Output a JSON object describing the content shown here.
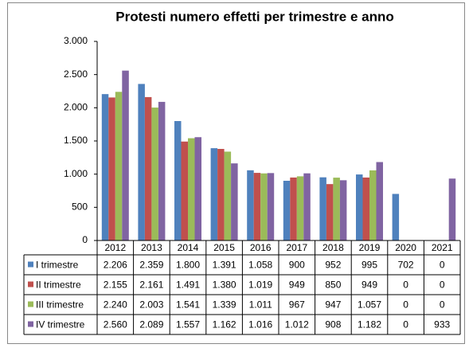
{
  "chart_data": {
    "type": "bar",
    "title": "Protesti numero effetti per trimestre e anno",
    "categories": [
      "2012",
      "2013",
      "2014",
      "2015",
      "2016",
      "2017",
      "2018",
      "2019",
      "2020",
      "2021"
    ],
    "series": [
      {
        "name": "I trimestre",
        "color": "#4f81bd",
        "values": [
          2206,
          2359,
          1800,
          1391,
          1058,
          900,
          952,
          995,
          702,
          0
        ],
        "value_labels": [
          "2.206",
          "2.359",
          "1.800",
          "1.391",
          "1.058",
          "900",
          "952",
          "995",
          "702",
          "0"
        ]
      },
      {
        "name": "II trimestre",
        "color": "#c0504d",
        "values": [
          2155,
          2161,
          1491,
          1380,
          1019,
          949,
          850,
          949,
          0,
          0
        ],
        "value_labels": [
          "2.155",
          "2.161",
          "1.491",
          "1.380",
          "1.019",
          "949",
          "850",
          "949",
          "0",
          "0"
        ]
      },
      {
        "name": "III trimestre",
        "color": "#9bbb59",
        "values": [
          2240,
          2003,
          1541,
          1339,
          1011,
          967,
          947,
          1057,
          0,
          0
        ],
        "value_labels": [
          "2.240",
          "2.003",
          "1.541",
          "1.339",
          "1.011",
          "967",
          "947",
          "1.057",
          "0",
          "0"
        ]
      },
      {
        "name": "IV trimestre",
        "color": "#8064a2",
        "values": [
          2560,
          2089,
          1557,
          1162,
          1016,
          1012,
          908,
          1182,
          0,
          933
        ],
        "value_labels": [
          "2.560",
          "2.089",
          "1.557",
          "1.162",
          "1.016",
          "1.012",
          "908",
          "1.182",
          "0",
          "933"
        ]
      }
    ],
    "ylim": [
      0,
      3000
    ],
    "yticks": [
      0,
      500,
      {
        "value": 1000,
        "label": "1.000"
      },
      {
        "value": 1500,
        "label": "1.500"
      },
      {
        "value": 2000,
        "label": "2.000"
      },
      {
        "value": 2500,
        "label": "2.500"
      },
      {
        "value": 3000,
        "label": "3.000"
      }
    ],
    "grid": false
  }
}
